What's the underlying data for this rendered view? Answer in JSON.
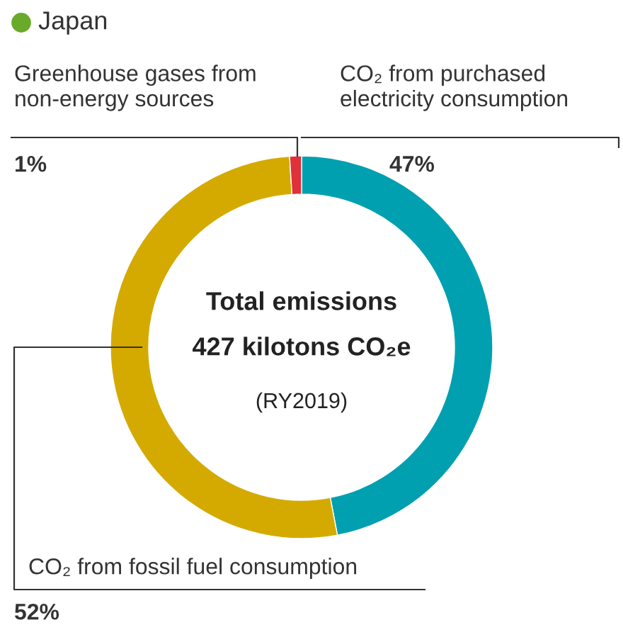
{
  "chart_data": {
    "type": "donut",
    "title": "Japan",
    "categories": [
      "CO₂ from purchased electricity consumption",
      "CO₂ from fossil fuel consumption",
      "Greenhouse gases from non-energy sources"
    ],
    "values": [
      47,
      52,
      1
    ],
    "colors": [
      "#00a0b0",
      "#d4aa00",
      "#e0303a"
    ],
    "value_labels": [
      "47%",
      "52%",
      "1%"
    ],
    "annotations": [
      "Total emissions",
      "427 kilotons CO₂e",
      "(RY2019)"
    ]
  }
}
